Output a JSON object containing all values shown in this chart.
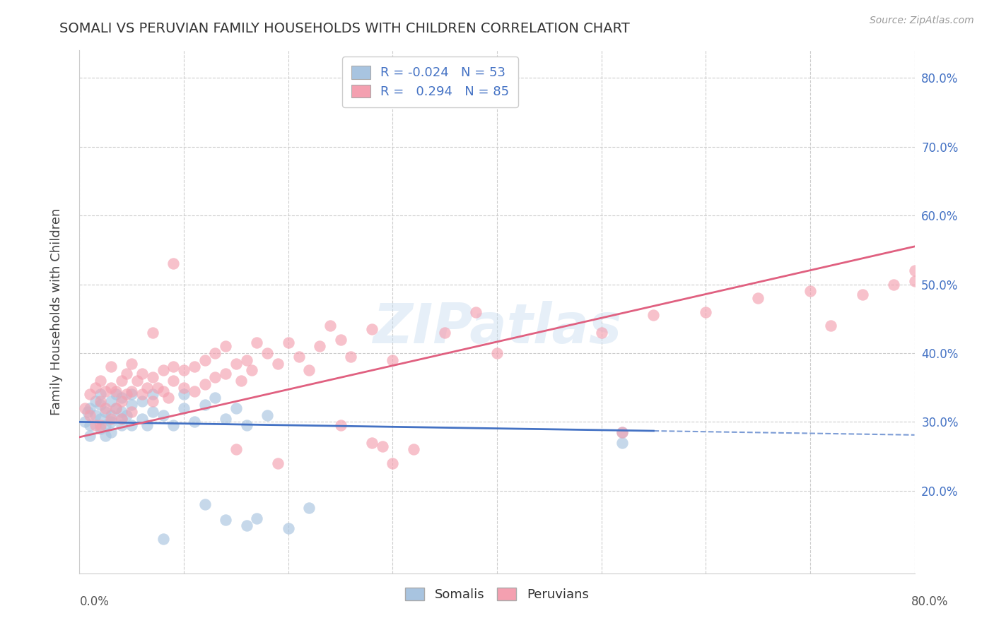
{
  "title": "SOMALI VS PERUVIAN FAMILY HOUSEHOLDS WITH CHILDREN CORRELATION CHART",
  "source": "Source: ZipAtlas.com",
  "ylabel": "Family Households with Children",
  "xlim": [
    0.0,
    0.8
  ],
  "ylim": [
    0.08,
    0.84
  ],
  "ytick_vals": [
    0.2,
    0.3,
    0.4,
    0.5,
    0.6,
    0.7,
    0.8
  ],
  "ytick_labels": [
    "20.0%",
    "30.0%",
    "40.0%",
    "50.0%",
    "60.0%",
    "70.0%",
    "80.0%"
  ],
  "background_color": "#ffffff",
  "grid_color": "#cccccc",
  "somali_color": "#a8c4e0",
  "peruvian_color": "#f4a0b0",
  "somali_line_color": "#4472c4",
  "peruvian_line_color": "#e06080",
  "legend_R_somali": "-0.024",
  "legend_N_somali": "53",
  "legend_R_peruvian": "0.294",
  "legend_N_peruvian": "85",
  "watermark": "ZIPatlas",
  "somali_solid_xlim": [
    0.0,
    0.55
  ],
  "somali_dashed_xlim": [
    0.55,
    0.8
  ],
  "peruvian_solid_xlim": [
    0.0,
    0.8
  ],
  "somali_trend_start_y": 0.3,
  "somali_trend_end_y": 0.287,
  "peruvian_trend_start_y": 0.278,
  "peruvian_trend_end_y": 0.555,
  "somali_x": [
    0.005,
    0.008,
    0.01,
    0.01,
    0.01,
    0.015,
    0.015,
    0.02,
    0.02,
    0.02,
    0.02,
    0.025,
    0.025,
    0.025,
    0.03,
    0.03,
    0.03,
    0.03,
    0.035,
    0.035,
    0.04,
    0.04,
    0.04,
    0.04,
    0.045,
    0.05,
    0.05,
    0.05,
    0.06,
    0.06,
    0.065,
    0.07,
    0.07,
    0.08,
    0.09,
    0.1,
    0.1,
    0.11,
    0.12,
    0.13,
    0.14,
    0.15,
    0.16,
    0.18,
    0.2,
    0.22,
    0.14,
    0.17,
    0.52,
    0.52,
    0.16,
    0.12,
    0.08
  ],
  "somali_y": [
    0.3,
    0.315,
    0.32,
    0.295,
    0.28,
    0.31,
    0.33,
    0.305,
    0.29,
    0.325,
    0.34,
    0.315,
    0.295,
    0.28,
    0.31,
    0.33,
    0.3,
    0.285,
    0.32,
    0.34,
    0.305,
    0.295,
    0.315,
    0.335,
    0.31,
    0.295,
    0.325,
    0.34,
    0.305,
    0.33,
    0.295,
    0.315,
    0.34,
    0.31,
    0.295,
    0.32,
    0.34,
    0.3,
    0.325,
    0.335,
    0.305,
    0.32,
    0.295,
    0.31,
    0.145,
    0.175,
    0.158,
    0.16,
    0.285,
    0.27,
    0.15,
    0.18,
    0.13
  ],
  "peruvian_x": [
    0.005,
    0.01,
    0.01,
    0.015,
    0.015,
    0.02,
    0.02,
    0.02,
    0.025,
    0.025,
    0.03,
    0.03,
    0.03,
    0.035,
    0.035,
    0.04,
    0.04,
    0.04,
    0.045,
    0.045,
    0.05,
    0.05,
    0.05,
    0.055,
    0.06,
    0.06,
    0.065,
    0.07,
    0.07,
    0.075,
    0.08,
    0.08,
    0.085,
    0.09,
    0.09,
    0.1,
    0.1,
    0.11,
    0.11,
    0.12,
    0.12,
    0.13,
    0.13,
    0.14,
    0.14,
    0.15,
    0.155,
    0.16,
    0.165,
    0.17,
    0.18,
    0.19,
    0.2,
    0.21,
    0.22,
    0.23,
    0.24,
    0.25,
    0.26,
    0.28,
    0.3,
    0.35,
    0.38,
    0.4,
    0.5,
    0.55,
    0.6,
    0.65,
    0.7,
    0.72,
    0.75,
    0.78,
    0.8,
    0.8,
    0.82,
    0.28,
    0.3,
    0.52,
    0.15,
    0.19,
    0.25,
    0.29,
    0.32,
    0.07,
    0.09
  ],
  "peruvian_y": [
    0.32,
    0.34,
    0.31,
    0.35,
    0.295,
    0.33,
    0.295,
    0.36,
    0.32,
    0.345,
    0.305,
    0.35,
    0.38,
    0.32,
    0.345,
    0.33,
    0.36,
    0.305,
    0.34,
    0.37,
    0.315,
    0.345,
    0.385,
    0.36,
    0.34,
    0.37,
    0.35,
    0.33,
    0.365,
    0.35,
    0.345,
    0.375,
    0.335,
    0.36,
    0.38,
    0.35,
    0.375,
    0.345,
    0.38,
    0.355,
    0.39,
    0.365,
    0.4,
    0.37,
    0.41,
    0.385,
    0.36,
    0.39,
    0.375,
    0.415,
    0.4,
    0.385,
    0.415,
    0.395,
    0.375,
    0.41,
    0.44,
    0.42,
    0.395,
    0.435,
    0.39,
    0.43,
    0.46,
    0.4,
    0.43,
    0.455,
    0.46,
    0.48,
    0.49,
    0.44,
    0.485,
    0.5,
    0.505,
    0.52,
    0.53,
    0.27,
    0.24,
    0.285,
    0.26,
    0.24,
    0.295,
    0.265,
    0.26,
    0.43,
    0.53
  ]
}
